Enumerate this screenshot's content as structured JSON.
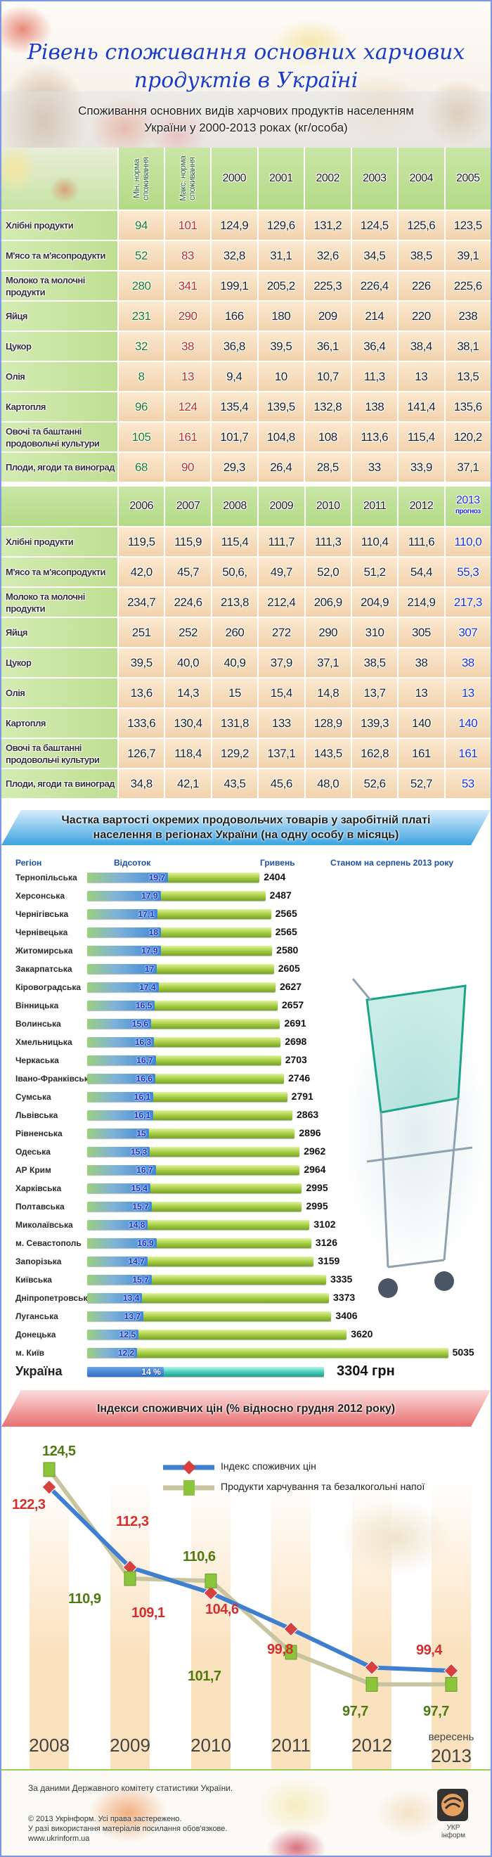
{
  "header": {
    "title_line1": "Рівень споживання основних харчових",
    "title_line2": "продуктів в Україні",
    "subtitle_line1": "Споживання основних видів харчових продуктів населенням",
    "subtitle_line2": "України у 2000-2013 роках (кг/особа)"
  },
  "table1": {
    "min_header": "Мін. норма споживання",
    "max_header": "Макс. норма споживання",
    "years": [
      "2000",
      "2001",
      "2002",
      "2003",
      "2004",
      "2005"
    ],
    "rows": [
      {
        "label": "Хлібні продукти",
        "min": "94",
        "max": "101",
        "values": [
          "124,9",
          "129,6",
          "131,2",
          "124,5",
          "125,6",
          "123,5"
        ]
      },
      {
        "label": "М'ясо та м'ясопродукти",
        "min": "52",
        "max": "83",
        "values": [
          "32,8",
          "31,1",
          "32,6",
          "34,5",
          "38,5",
          "39,1"
        ]
      },
      {
        "label": "Молоко та молочні продукти",
        "min": "280",
        "max": "341",
        "values": [
          "199,1",
          "205,2",
          "225,3",
          "226,4",
          "226",
          "225,6"
        ]
      },
      {
        "label": "Яйця",
        "min": "231",
        "max": "290",
        "values": [
          "166",
          "180",
          "209",
          "214",
          "220",
          "238"
        ]
      },
      {
        "label": "Цукор",
        "min": "32",
        "max": "38",
        "values": [
          "36,8",
          "39,5",
          "36,1",
          "36,4",
          "38,4",
          "38,1"
        ]
      },
      {
        "label": "Олія",
        "min": "8",
        "max": "13",
        "values": [
          "9,4",
          "10",
          "10,7",
          "11,3",
          "13",
          "13,5"
        ]
      },
      {
        "label": "Картопля",
        "min": "96",
        "max": "124",
        "values": [
          "135,4",
          "139,5",
          "132,8",
          "138",
          "141,4",
          "135,6"
        ]
      },
      {
        "label": "Овочі та баштанні продовольчі культури",
        "min": "105",
        "max": "161",
        "values": [
          "101,7",
          "104,8",
          "108",
          "113,6",
          "115,4",
          "120,2"
        ]
      },
      {
        "label": "Плоди, ягоди та виноград",
        "min": "68",
        "max": "90",
        "values": [
          "29,3",
          "26,4",
          "28,5",
          "33",
          "33,9",
          "37,1"
        ]
      }
    ]
  },
  "table2": {
    "years": [
      "2006",
      "2007",
      "2008",
      "2009",
      "2010",
      "2011",
      "2012"
    ],
    "forecast_year": "2013",
    "forecast_label": "прогноз",
    "rows": [
      {
        "label": "Хлібні продукти",
        "values": [
          "119,5",
          "115,9",
          "115,4",
          "111,7",
          "111,3",
          "110,4",
          "111,6"
        ],
        "forecast": "110,0"
      },
      {
        "label": "М'ясо та м'ясопродукти",
        "values": [
          "42,0",
          "45,7",
          "50,6,",
          "49,7",
          "52,0",
          "51,2",
          "54,4"
        ],
        "forecast": "55,3"
      },
      {
        "label": "Молоко та молочні продукти",
        "values": [
          "234,7",
          "224,6",
          "213,8",
          "212,4",
          "206,9",
          "204,9",
          "214,9"
        ],
        "forecast": "217,3"
      },
      {
        "label": "Яйця",
        "values": [
          "251",
          "252",
          "260",
          "272",
          "290",
          "310",
          "305"
        ],
        "forecast": "307"
      },
      {
        "label": "Цукор",
        "values": [
          "39,5",
          "40,0",
          "40,9",
          "37,9",
          "37,1",
          "38,5",
          "38"
        ],
        "forecast": "38"
      },
      {
        "label": "Олія",
        "values": [
          "13,6",
          "14,3",
          "15",
          "15,4",
          "14,8",
          "13,7",
          "13"
        ],
        "forecast": "13"
      },
      {
        "label": "Картопля",
        "values": [
          "133,6",
          "130,4",
          "131,8",
          "133",
          "128,9",
          "139,3",
          "140"
        ],
        "forecast": "140"
      },
      {
        "label": "Овочі та баштанні продовольчі культури",
        "values": [
          "126,7",
          "118,4",
          "129,2",
          "137,1",
          "143,5",
          "162,8",
          "161"
        ],
        "forecast": "161"
      },
      {
        "label": "Плоди, ягоди та виноград",
        "values": [
          "34,8",
          "42,1",
          "43,5",
          "45,6",
          "48,0",
          "52,6",
          "52,7"
        ],
        "forecast": "53"
      }
    ]
  },
  "chart_data": [
    {
      "type": "bar",
      "title": "Частка вартості окремих продовольчих товарів у заробітній платі населення в регіонах України (на одну особу в місяць)",
      "col_region": "Регіон",
      "col_percent": "Відсоток",
      "col_uah": "Гривень",
      "note": "Станом на серпень 2013 року",
      "categories": [
        "Тернопільська",
        "Херсонська",
        "Чернігівська",
        "Чернівецька",
        "Житомирська",
        "Закарпатська",
        "Кіровоградська",
        "Вінницька",
        "Волинська",
        "Хмельницька",
        "Черкаська",
        "Івано-Франківська",
        "Сумська",
        "Львівська",
        "Рівненська",
        "Одеська",
        "АР Крим",
        "Харківська",
        "Полтавська",
        "Миколаївська",
        "м. Севастополь",
        "Запорізька",
        "Київська",
        "Дніпропетровська",
        "Луганська",
        "Донецька",
        "м. Київ"
      ],
      "percent_labels": [
        "19,7",
        "17,9",
        "17,1",
        "18",
        "17,9",
        "17",
        "17,4",
        "16,5",
        "15,6",
        "16,3",
        "16,7",
        "16,6",
        "16,1",
        "16,1",
        "15",
        "15,3",
        "16,7",
        "15,4",
        "15,7",
        "14,8",
        "16,9",
        "14,7",
        "15,7",
        "13,4",
        "13,7",
        "12,5",
        "12,2"
      ],
      "percent": [
        19.7,
        17.9,
        17.1,
        18,
        17.9,
        17,
        17.4,
        16.5,
        15.6,
        16.3,
        16.7,
        16.6,
        16.1,
        16.1,
        15,
        15.3,
        16.7,
        15.4,
        15.7,
        14.8,
        16.9,
        14.7,
        15.7,
        13.4,
        13.7,
        12.5,
        12.2
      ],
      "uah": [
        2404,
        2487,
        2565,
        2565,
        2580,
        2605,
        2627,
        2657,
        2691,
        2698,
        2703,
        2746,
        2791,
        2863,
        2896,
        2962,
        2964,
        2995,
        2995,
        3102,
        3126,
        3159,
        3335,
        3373,
        3406,
        3620,
        5035
      ],
      "total": {
        "label": "Україна",
        "percent": 14,
        "percent_label": "14 %",
        "uah": 3304,
        "uah_label": "3304 грн"
      }
    },
    {
      "type": "line",
      "title": "Індекси споживчих цін (% відносно грудня 2012 року)",
      "categories": [
        "2008",
        "2009",
        "2010",
        "2011",
        "2012",
        "2013"
      ],
      "last_category_prefix": "вересень",
      "series": [
        {
          "name": "Індекс споживчих цін",
          "color": "#3f7fd0",
          "marker_color": "#d84040",
          "values": [
            122.3,
            112.3,
            109.1,
            104.6,
            99.8,
            99.4
          ],
          "labels": [
            "122,3",
            "112,3",
            "109,1",
            "104,6",
            "99,8",
            "99,4"
          ]
        },
        {
          "name": "Продукти харчування та безалкогольні напої",
          "color": "#c9c4a0",
          "marker_color": "#8cc43c",
          "values": [
            124.5,
            110.9,
            110.6,
            101.7,
            97.7,
            97.7
          ],
          "labels": [
            "124,5",
            "110,9",
            "110,6",
            "101,7",
            "97,7",
            "97,7"
          ]
        }
      ]
    }
  ],
  "footer": {
    "source": "За даними Державного комітету статистики України.",
    "copyright": "© 2013 Укрінформ. Усі права застережено.",
    "usage": "У разі використання матеріалів посилання обов'язкове.",
    "url": "www.ukrinform.ua",
    "logo_text": "УКР інформ"
  },
  "colors": {
    "title": "#1a3cc8",
    "min": "#1f7a1f",
    "max": "#c42a20",
    "forecast": "#1a2fd6"
  }
}
